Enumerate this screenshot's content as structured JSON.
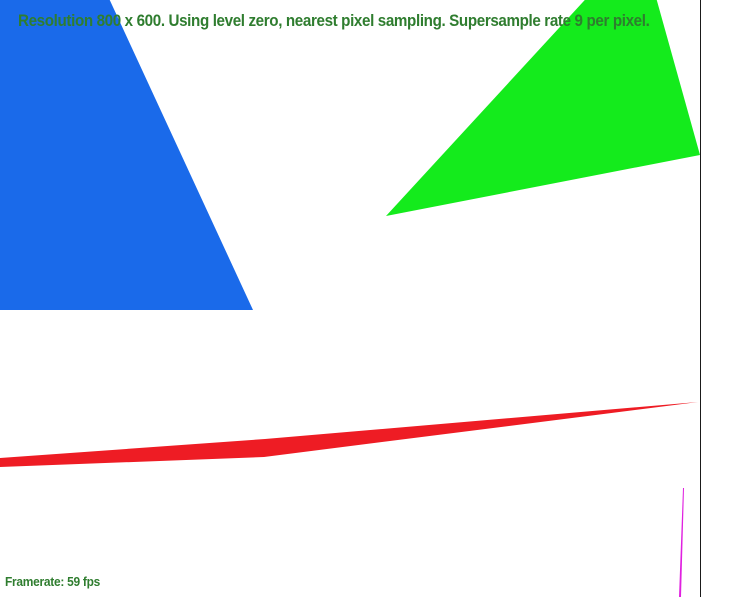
{
  "overlay": {
    "status_text": "Resolution 800 x 600. Using level zero, nearest pixel sampling. Supersample rate 9 per pixel.",
    "framerate_text": "Framerate: 59 fps"
  },
  "colors": {
    "text": "#2f7d2f",
    "blue_triangle": "#1a6aea",
    "green_triangle": "#14eb1c",
    "red_sliver": "#ee1c24",
    "magenta_sliver": "#e020e0"
  }
}
